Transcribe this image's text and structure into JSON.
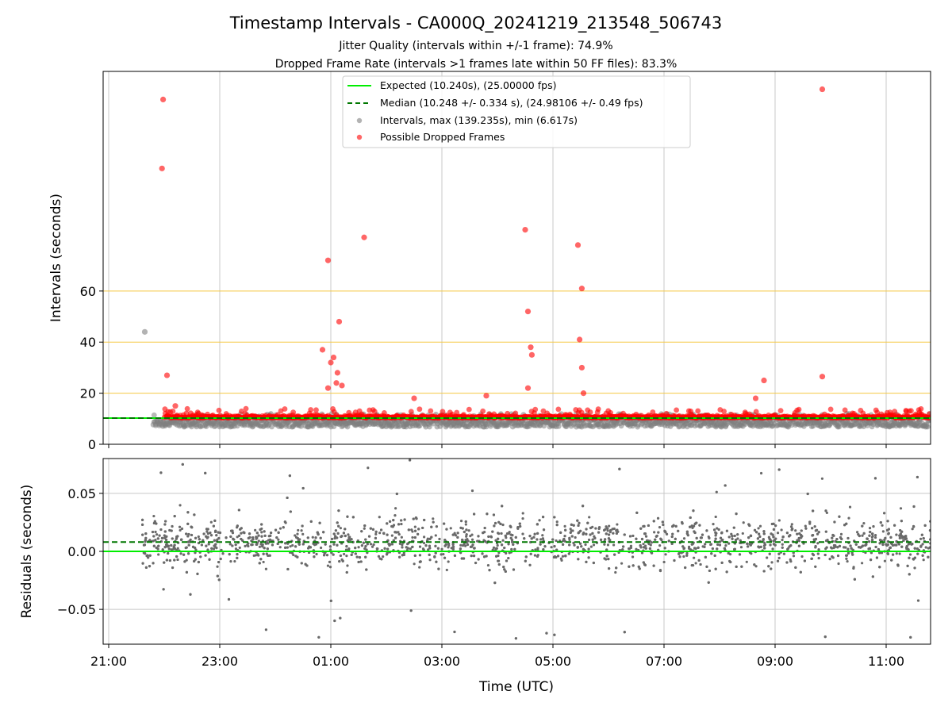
{
  "figure": {
    "title": "Timestamp Intervals - CA000Q_20241219_213548_506743",
    "subtitle_1": "Jitter Quality (intervals within +/-1 frame): 74.9%",
    "subtitle_2": "Dropped Frame Rate (intervals >1 frames late within 50 FF files): 83.3%",
    "x_label": "Time (UTC)"
  },
  "chart_data": [
    {
      "type": "scatter",
      "panel": "intervals",
      "ylabel": "Intervals (seconds)",
      "x_tick_labels": [
        "21:00",
        "23:00",
        "01:00",
        "03:00",
        "05:00",
        "07:00",
        "09:00",
        "11:00"
      ],
      "xlim_hours": [
        20.9,
        35.8
      ],
      "y_ticks": [
        0,
        20,
        40,
        60
      ],
      "ylim": [
        0,
        146
      ],
      "reference_lines": [
        {
          "name": "Expected (10.240s), (25.00000 fps)",
          "y": 10.24,
          "style": "solid",
          "color": "#00ee00"
        },
        {
          "name": "Median (10.248 +/- 0.334 s), (24.98106 +/- 0.49 fps)",
          "y": 10.248,
          "style": "dashed",
          "color": "#007700"
        }
      ],
      "threshold_lines": [
        20,
        40,
        60
      ],
      "threshold_color": "#f5c842",
      "series": [
        {
          "name": "Intervals, max (139.235s), min (6.617s)",
          "color": "#808080"
        },
        {
          "name": "Possible Dropped Frames",
          "color": "#ff0000"
        }
      ],
      "dense_band": {
        "x_start": 21.8,
        "x_end": 35.8,
        "gray_y_range": [
          6.8,
          12
        ],
        "red_y_range": [
          10.3,
          14
        ]
      },
      "dropped_frame_outliers": [
        {
          "x": 21.98,
          "y": 135
        },
        {
          "x": 21.96,
          "y": 108
        },
        {
          "x": 22.05,
          "y": 27
        },
        {
          "x": 24.95,
          "y": 72
        },
        {
          "x": 24.85,
          "y": 37
        },
        {
          "x": 25.05,
          "y": 34
        },
        {
          "x": 25.0,
          "y": 32
        },
        {
          "x": 25.15,
          "y": 48
        },
        {
          "x": 25.12,
          "y": 28
        },
        {
          "x": 25.1,
          "y": 24
        },
        {
          "x": 25.2,
          "y": 23
        },
        {
          "x": 24.95,
          "y": 22
        },
        {
          "x": 25.6,
          "y": 81
        },
        {
          "x": 28.5,
          "y": 84
        },
        {
          "x": 28.55,
          "y": 52
        },
        {
          "x": 28.6,
          "y": 38
        },
        {
          "x": 28.62,
          "y": 35
        },
        {
          "x": 28.55,
          "y": 22
        },
        {
          "x": 29.45,
          "y": 78
        },
        {
          "x": 29.52,
          "y": 61
        },
        {
          "x": 29.48,
          "y": 41
        },
        {
          "x": 29.52,
          "y": 30
        },
        {
          "x": 29.55,
          "y": 20
        },
        {
          "x": 32.8,
          "y": 25
        },
        {
          "x": 33.85,
          "y": 139
        },
        {
          "x": 33.85,
          "y": 26.5
        },
        {
          "x": 27.8,
          "y": 19
        },
        {
          "x": 26.5,
          "y": 18
        },
        {
          "x": 32.65,
          "y": 18
        },
        {
          "x": 22.2,
          "y": 15
        }
      ],
      "gray_outliers": [
        {
          "x": 21.65,
          "y": 44
        }
      ]
    },
    {
      "type": "scatter",
      "panel": "residuals",
      "ylabel": "Residuals (seconds)",
      "y_ticks": [
        0.05,
        0.0,
        -0.05
      ],
      "y_tick_labels": [
        "0.05",
        "0.00",
        "−0.05"
      ],
      "ylim": [
        -0.08,
        0.08
      ],
      "reference_lines": [
        {
          "y": 0.0,
          "style": "solid",
          "color": "#00ee00"
        },
        {
          "y": 0.008,
          "style": "dashed",
          "color": "#007700"
        }
      ],
      "series": [
        {
          "color": "#696969"
        }
      ],
      "distribution": {
        "x_start": 21.6,
        "x_end": 35.8,
        "center": 0.008,
        "spread": 0.02
      }
    }
  ]
}
